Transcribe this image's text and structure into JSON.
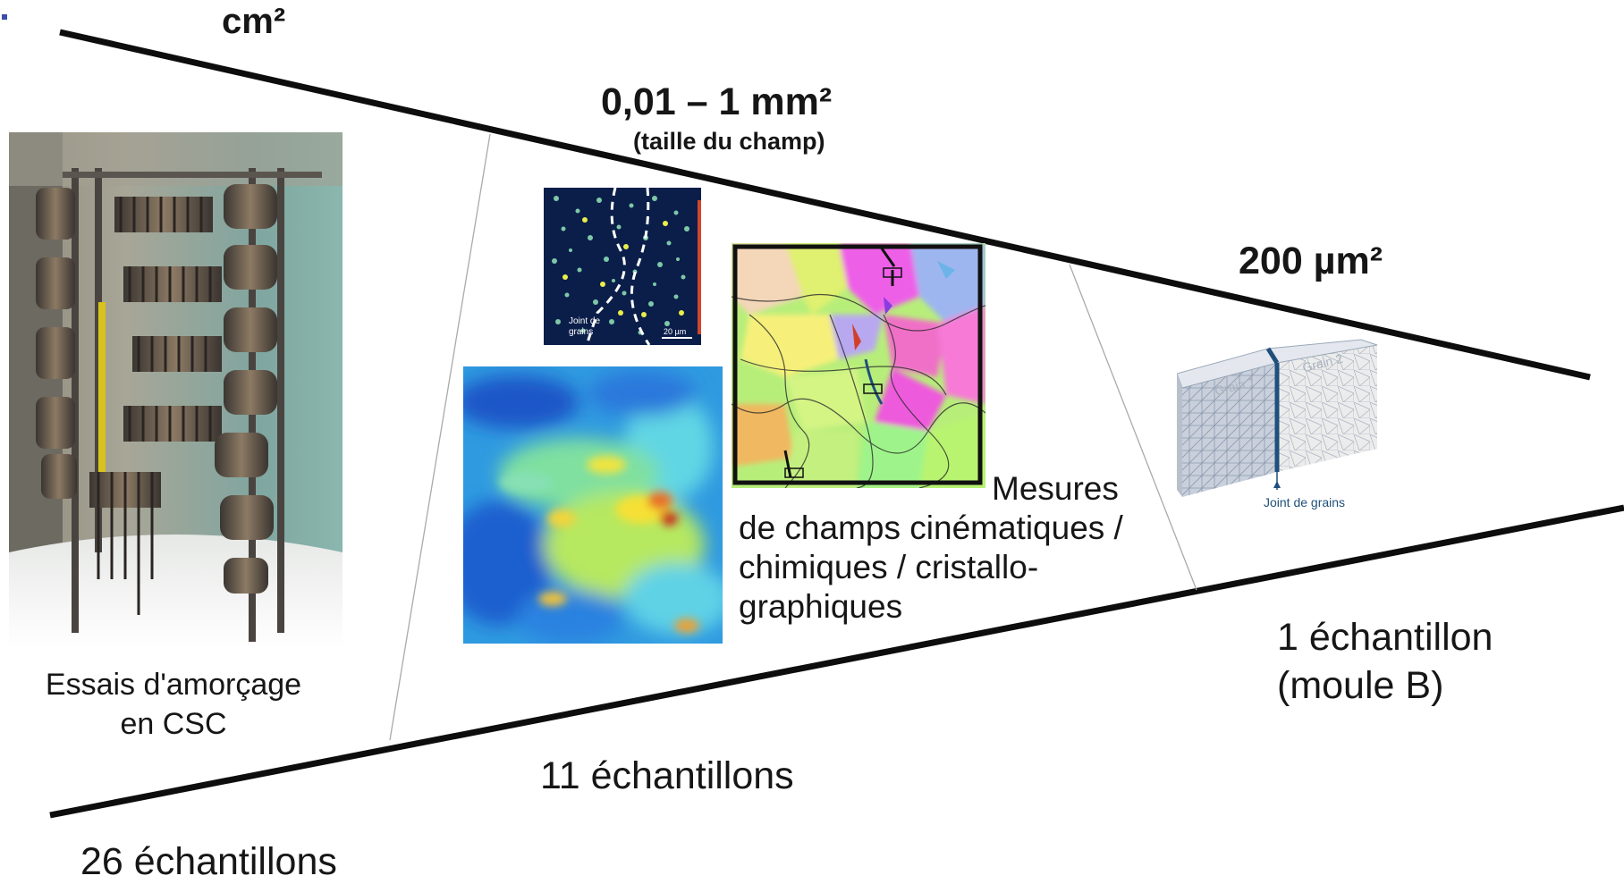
{
  "scales": {
    "cm": "cm²",
    "mm": "0,01 – 1 mm²",
    "mm_note": "(taille du champ)",
    "um": "200 µm²"
  },
  "photo": {
    "caption": "Essais d'amorçage\nen CSC",
    "count": "26 échantillons"
  },
  "fields": {
    "caption": "Mesures\nde champs cinématiques /\nchimiques / cristallo-\ngraphiques",
    "count": "11 échantillons",
    "chem_map": {
      "annotation": "Joint de\ngrains",
      "scalebar": "20 µm"
    }
  },
  "model": {
    "grain1": "Grain 1",
    "grain2": "Grain 2",
    "boundary": "Joint de grains",
    "count": "1 échantillon\n(moule B)"
  },
  "colors": {
    "lines": "#0d0d0d",
    "chem_bg": "#0b1e4a",
    "boundary": "#1f4f7a",
    "mesh": "#9aa8b8"
  }
}
